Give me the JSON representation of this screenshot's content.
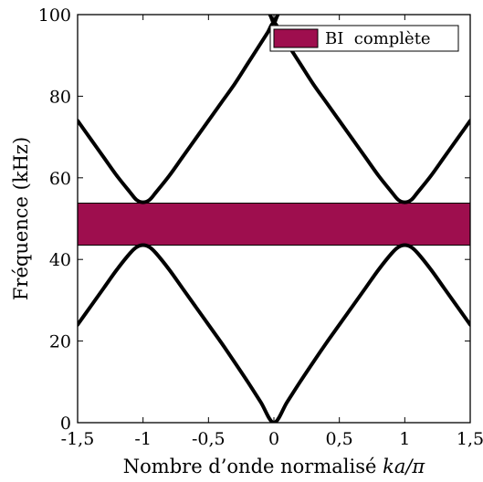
{
  "chart_data": {
    "type": "line",
    "xlabel": "Nombre d’onde normalisé ka/π",
    "ylabel": "Fréquence (kHz)",
    "xlim": [
      -1.5,
      1.5
    ],
    "ylim": [
      0,
      100
    ],
    "xticks": [
      -1.5,
      -1,
      -0.5,
      0,
      0.5,
      1,
      1.5
    ],
    "xtick_labels": [
      "-1,5",
      "-1",
      "-0,5",
      "0",
      "0,5",
      "1",
      "1,5"
    ],
    "yticks": [
      0,
      20,
      40,
      60,
      80,
      100
    ],
    "ytick_labels": [
      "0",
      "20",
      "40",
      "60",
      "80",
      "100"
    ],
    "band": {
      "name": "BI  complète",
      "y_from": 43.5,
      "y_to": 53.8,
      "color": "#9e0e4e"
    },
    "series": [
      {
        "values": [
          [
            -1.5,
            24
          ],
          [
            -1.4,
            28.5
          ],
          [
            -1.3,
            33
          ],
          [
            -1.2,
            37.5
          ],
          [
            -1.1,
            41.5
          ],
          [
            -1.05,
            43
          ],
          [
            -1.0,
            43.5
          ],
          [
            -0.95,
            43
          ],
          [
            -0.9,
            41.5
          ],
          [
            -0.8,
            37.5
          ],
          [
            -0.7,
            33
          ],
          [
            -0.6,
            28.5
          ],
          [
            -0.5,
            24
          ],
          [
            -0.4,
            19.5
          ],
          [
            -0.3,
            14.8
          ],
          [
            -0.2,
            10
          ],
          [
            -0.1,
            5
          ],
          [
            0,
            0
          ],
          [
            0.1,
            5
          ],
          [
            0.2,
            10
          ],
          [
            0.3,
            14.8
          ],
          [
            0.4,
            19.5
          ],
          [
            0.5,
            24
          ],
          [
            0.6,
            28.5
          ],
          [
            0.7,
            33
          ],
          [
            0.8,
            37.5
          ],
          [
            0.9,
            41.5
          ],
          [
            0.95,
            43
          ],
          [
            1.0,
            43.5
          ],
          [
            1.05,
            43
          ],
          [
            1.1,
            41.5
          ],
          [
            1.2,
            37.5
          ],
          [
            1.3,
            33
          ],
          [
            1.4,
            28.5
          ],
          [
            1.5,
            24
          ]
        ]
      },
      {
        "values": [
          [
            -1.5,
            74
          ],
          [
            -1.4,
            69.5
          ],
          [
            -1.3,
            65
          ],
          [
            -1.2,
            60.5
          ],
          [
            -1.1,
            56.5
          ],
          [
            -1.05,
            54.6
          ],
          [
            -1.0,
            54
          ],
          [
            -0.95,
            54.6
          ],
          [
            -0.9,
            56.5
          ],
          [
            -0.8,
            60.5
          ],
          [
            -0.7,
            65
          ],
          [
            -0.6,
            69.5
          ],
          [
            -0.5,
            74
          ],
          [
            -0.4,
            78.5
          ],
          [
            -0.3,
            83
          ],
          [
            -0.2,
            88
          ],
          [
            -0.1,
            93
          ],
          [
            -0.05,
            95.5
          ],
          [
            0,
            98
          ],
          [
            0.05,
            95.5
          ],
          [
            0.1,
            93
          ],
          [
            0.2,
            88
          ],
          [
            0.3,
            83
          ],
          [
            0.4,
            78.5
          ],
          [
            0.5,
            74
          ],
          [
            0.6,
            69.5
          ],
          [
            0.7,
            65
          ],
          [
            0.8,
            60.5
          ],
          [
            0.9,
            56.5
          ],
          [
            0.95,
            54.6
          ],
          [
            1.0,
            54
          ],
          [
            1.05,
            54.6
          ],
          [
            1.1,
            56.5
          ],
          [
            1.2,
            60.5
          ],
          [
            1.3,
            65
          ],
          [
            1.4,
            69.5
          ],
          [
            1.5,
            74
          ]
        ]
      },
      {
        "values": [
          [
            -0.1,
            104
          ],
          [
            -0.03,
            100
          ],
          [
            0,
            98
          ],
          [
            0.03,
            100
          ],
          [
            0.1,
            104
          ]
        ]
      }
    ],
    "legend": {
      "position": "top-right",
      "entries": [
        "BI  complète"
      ]
    },
    "grid": false
  }
}
